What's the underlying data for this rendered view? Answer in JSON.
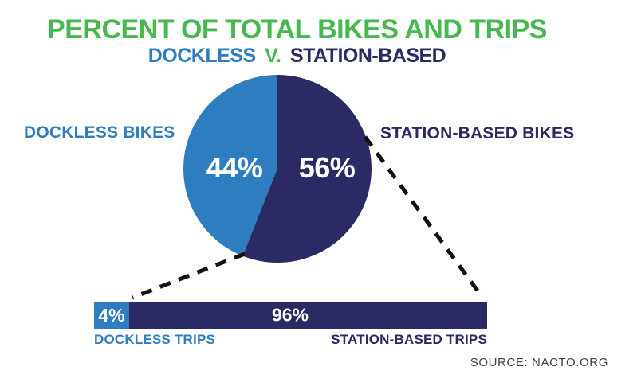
{
  "colors": {
    "green": "#47b84e",
    "blue": "#2e7dc1",
    "navy": "#2b2a64",
    "dash": "#111111",
    "source": "#3d3d3d"
  },
  "title": {
    "text": "PERCENT OF TOTAL BIKES AND TRIPS"
  },
  "subtitle": {
    "dockless": "DOCKLESS",
    "versus": "V.",
    "station": "STATION-BASED"
  },
  "pie": {
    "left_label": "DOCKLESS BIKES",
    "right_label": "STATION-BASED BIKES",
    "dockless_value": "44%",
    "station_value": "56%"
  },
  "bar": {
    "dockless_value": "4%",
    "station_value": "96%",
    "dockless_label": "DOCKLESS TRIPS",
    "station_label": "STATION-BASED TRIPS"
  },
  "source": "SOURCE: NACTO.ORG",
  "chart_data": [
    {
      "type": "pie",
      "title": "PERCENT OF TOTAL BIKES AND TRIPS — DOCKLESS V. STATION-BASED",
      "categories": [
        "DOCKLESS BIKES",
        "STATION-BASED BIKES"
      ],
      "values": [
        44,
        56
      ],
      "unit": "percent",
      "labels": [
        "44%",
        "56%"
      ],
      "colors": [
        "#2e7dc1",
        "#2b2a64"
      ],
      "start_angle_deg": 0,
      "direction": "clockwise",
      "first_slice": "STATION-BASED BIKES",
      "legend_position": "sides",
      "data_labels": "inside"
    },
    {
      "type": "bar",
      "subtype": "horizontal-stacked-100pct",
      "title": "PERCENT OF TOTAL TRIPS",
      "categories": [
        "DOCKLESS TRIPS",
        "STATION-BASED TRIPS"
      ],
      "values": [
        4,
        96
      ],
      "unit": "percent",
      "labels": [
        "4%",
        "96%"
      ],
      "colors": [
        "#2e7dc1",
        "#2b2a64"
      ],
      "xlim": [
        0,
        100
      ],
      "grid": false,
      "data_labels": "inside",
      "category_labels_position": "below"
    }
  ]
}
